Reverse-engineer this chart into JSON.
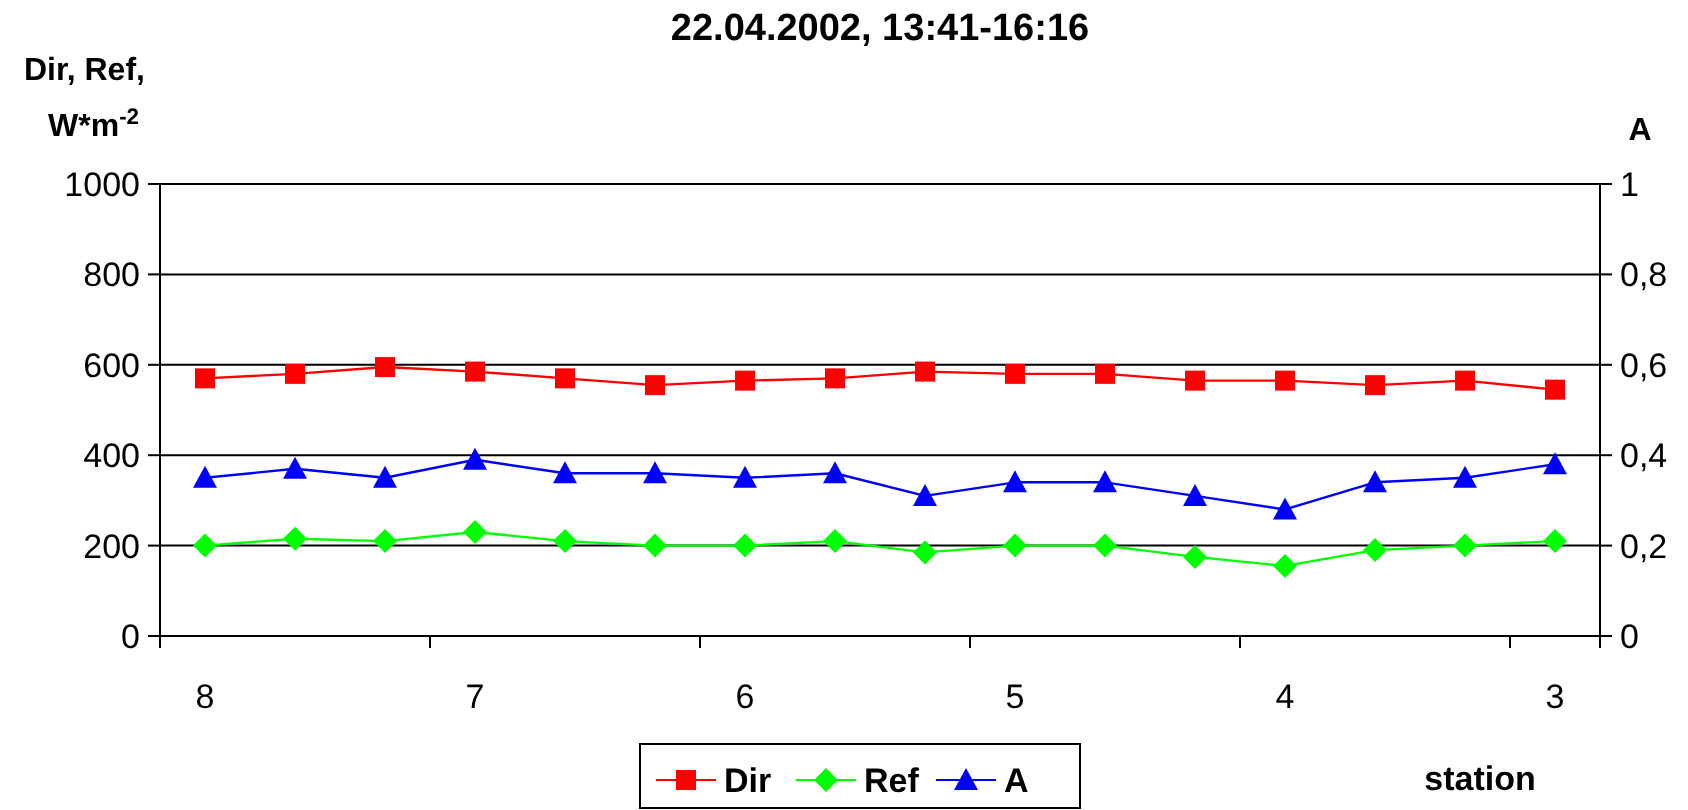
{
  "chart_data": {
    "type": "line",
    "title": "22.04.2002, 13:41-16:16",
    "xlabel": "station",
    "ylabel": "Dir, Ref, W*m$^{-2}$",
    "y2label": "A",
    "categories": [
      "8",
      null,
      null,
      "7",
      null,
      null,
      "6",
      null,
      null,
      "5",
      null,
      null,
      "4",
      null,
      null,
      "3"
    ],
    "series": [
      {
        "name": "Dir",
        "color": "#ff0000",
        "marker": "square",
        "values": [
          570,
          580,
          595,
          585,
          570,
          555,
          565,
          570,
          585,
          580,
          580,
          565,
          565,
          555,
          565,
          545
        ]
      },
      {
        "name": "Ref",
        "color": "#00ff00",
        "marker": "diamond",
        "values": [
          200,
          215,
          210,
          230,
          210,
          200,
          200,
          210,
          185,
          200,
          200,
          175,
          155,
          190,
          200,
          210
        ]
      },
      {
        "name": "A",
        "color": "#0000ff",
        "marker": "triangle",
        "axis": "y2",
        "values": [
          0.35,
          0.37,
          0.35,
          0.39,
          0.36,
          0.36,
          0.35,
          0.36,
          0.31,
          0.34,
          0.34,
          0.31,
          0.28,
          0.34,
          0.35,
          0.38
        ]
      }
    ],
    "ylim": [
      0,
      1000
    ],
    "yticks": [
      0,
      200,
      400,
      600,
      800,
      1000
    ],
    "y2lim": [
      0,
      1
    ],
    "y2ticks": [
      0,
      {
        "value": 0.2,
        "label": "0,2"
      },
      {
        "value": 0.4,
        "label": "0,4"
      },
      {
        "value": 0.6,
        "label": "0,6"
      },
      {
        "value": 0.8,
        "label": "0,8"
      },
      1
    ],
    "grid": "y",
    "legend": "bottom",
    "line_style": "solid"
  }
}
